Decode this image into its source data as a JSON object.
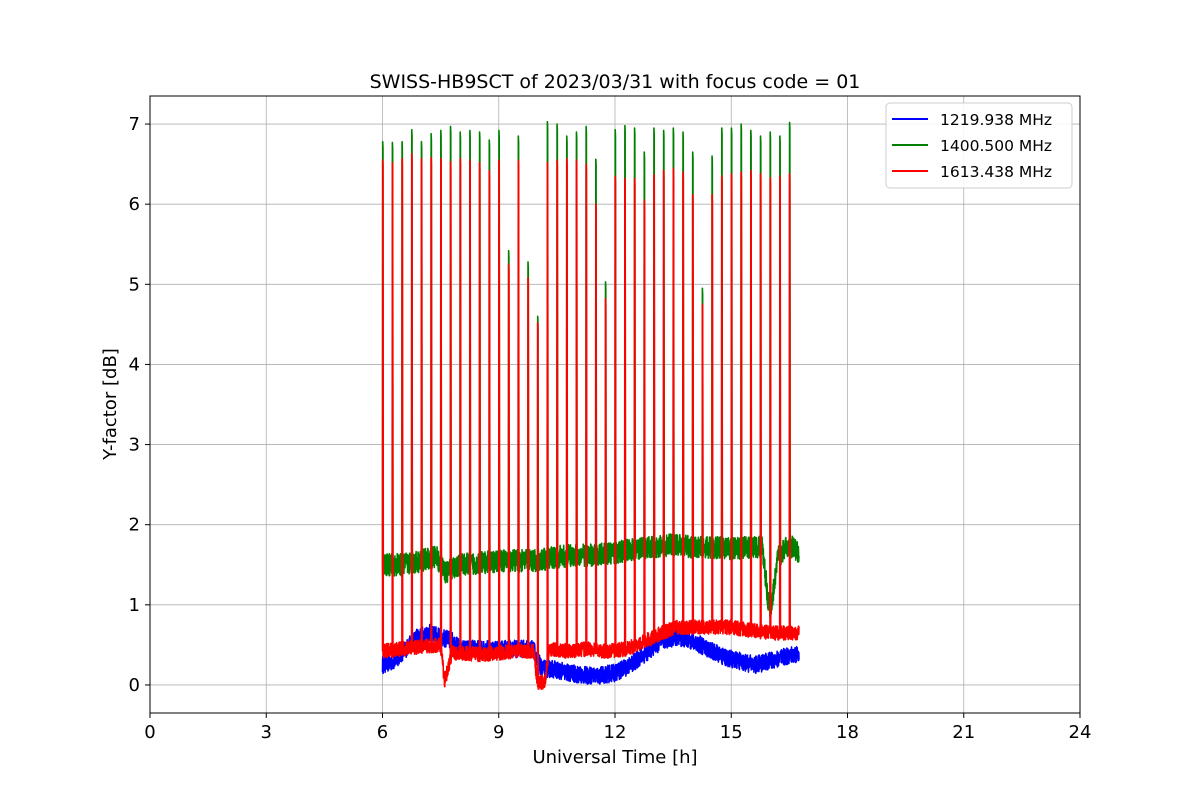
{
  "chart_data": {
    "type": "line",
    "title": "SWISS-HB9SCT of 2023/03/31 with focus code = 01",
    "xlabel": "Universal Time [h]",
    "ylabel": "Y-factor [dB]",
    "xlim": [
      0,
      24
    ],
    "ylim": [
      -0.35,
      7.35
    ],
    "xticks": [
      0,
      3,
      6,
      9,
      12,
      15,
      18,
      21,
      24
    ],
    "yticks": [
      0,
      1,
      2,
      3,
      4,
      5,
      6,
      7
    ],
    "grid": true,
    "legend_position": "top-right",
    "observation_window_h": [
      6.0,
      16.75
    ],
    "series": [
      {
        "name": "1219.938 MHz",
        "color": "#0000ff",
        "baseline": [
          [
            6.0,
            0.25
          ],
          [
            6.3,
            0.3
          ],
          [
            6.6,
            0.45
          ],
          [
            6.9,
            0.6
          ],
          [
            7.2,
            0.65
          ],
          [
            7.5,
            0.6
          ],
          [
            7.8,
            0.55
          ],
          [
            8.0,
            0.45
          ],
          [
            8.5,
            0.45
          ],
          [
            9.0,
            0.45
          ],
          [
            9.5,
            0.45
          ],
          [
            9.9,
            0.45
          ],
          [
            10.1,
            0.2
          ],
          [
            10.4,
            0.2
          ],
          [
            10.8,
            0.15
          ],
          [
            11.2,
            0.12
          ],
          [
            11.6,
            0.12
          ],
          [
            12.0,
            0.15
          ],
          [
            12.4,
            0.25
          ],
          [
            12.8,
            0.4
          ],
          [
            13.2,
            0.55
          ],
          [
            13.6,
            0.6
          ],
          [
            14.0,
            0.55
          ],
          [
            14.4,
            0.45
          ],
          [
            14.8,
            0.35
          ],
          [
            15.2,
            0.3
          ],
          [
            15.6,
            0.25
          ],
          [
            16.0,
            0.3
          ],
          [
            16.4,
            0.35
          ],
          [
            16.75,
            0.4
          ]
        ]
      },
      {
        "name": "1400.500 MHz",
        "color": "#008000",
        "baseline": [
          [
            6.0,
            1.5
          ],
          [
            6.5,
            1.5
          ],
          [
            7.0,
            1.55
          ],
          [
            7.4,
            1.6
          ],
          [
            7.6,
            1.4
          ],
          [
            8.0,
            1.5
          ],
          [
            8.5,
            1.52
          ],
          [
            9.0,
            1.55
          ],
          [
            9.5,
            1.55
          ],
          [
            10.0,
            1.55
          ],
          [
            10.5,
            1.6
          ],
          [
            11.0,
            1.62
          ],
          [
            11.5,
            1.62
          ],
          [
            12.0,
            1.65
          ],
          [
            12.5,
            1.7
          ],
          [
            13.0,
            1.72
          ],
          [
            13.5,
            1.75
          ],
          [
            14.0,
            1.72
          ],
          [
            14.5,
            1.72
          ],
          [
            15.0,
            1.7
          ],
          [
            15.5,
            1.72
          ],
          [
            15.8,
            1.72
          ],
          [
            16.0,
            0.85
          ],
          [
            16.2,
            1.6
          ],
          [
            16.5,
            1.75
          ],
          [
            16.75,
            1.65
          ]
        ],
        "peaks": [
          [
            6.0,
            6.78
          ],
          [
            6.25,
            6.77
          ],
          [
            6.5,
            6.78
          ],
          [
            6.75,
            6.93
          ],
          [
            7.0,
            6.78
          ],
          [
            7.25,
            6.88
          ],
          [
            7.5,
            6.92
          ],
          [
            7.75,
            6.97
          ],
          [
            8.0,
            6.9
          ],
          [
            8.25,
            6.92
          ],
          [
            8.5,
            6.9
          ],
          [
            8.75,
            6.8
          ],
          [
            9.0,
            6.92
          ],
          [
            9.25,
            5.42
          ],
          [
            9.5,
            6.85
          ],
          [
            9.75,
            5.28
          ],
          [
            10.0,
            4.6
          ],
          [
            10.25,
            7.03
          ],
          [
            10.5,
            7.0
          ],
          [
            10.75,
            6.85
          ],
          [
            11.0,
            6.9
          ],
          [
            11.25,
            6.97
          ],
          [
            11.5,
            6.56
          ],
          [
            11.75,
            5.03
          ],
          [
            12.0,
            6.93
          ],
          [
            12.25,
            6.98
          ],
          [
            12.5,
            6.95
          ],
          [
            12.75,
            6.65
          ],
          [
            13.0,
            6.95
          ],
          [
            13.25,
            6.92
          ],
          [
            13.5,
            6.95
          ],
          [
            13.75,
            6.9
          ],
          [
            14.0,
            6.65
          ],
          [
            14.25,
            4.95
          ],
          [
            14.5,
            6.6
          ],
          [
            14.75,
            6.95
          ],
          [
            15.0,
            6.95
          ],
          [
            15.25,
            7.0
          ],
          [
            15.5,
            6.92
          ],
          [
            15.75,
            6.85
          ],
          [
            16.0,
            6.9
          ],
          [
            16.25,
            6.85
          ],
          [
            16.5,
            7.02
          ]
        ]
      },
      {
        "name": "1613.438 MHz",
        "color": "#ff0000",
        "baseline": [
          [
            6.0,
            0.42
          ],
          [
            6.5,
            0.45
          ],
          [
            7.0,
            0.48
          ],
          [
            7.5,
            0.5
          ],
          [
            7.6,
            0.05
          ],
          [
            7.8,
            0.4
          ],
          [
            8.0,
            0.4
          ],
          [
            8.5,
            0.38
          ],
          [
            9.0,
            0.4
          ],
          [
            9.5,
            0.42
          ],
          [
            9.9,
            0.42
          ],
          [
            10.0,
            0.02
          ],
          [
            10.2,
            0.05
          ],
          [
            10.3,
            0.45
          ],
          [
            10.8,
            0.42
          ],
          [
            11.3,
            0.45
          ],
          [
            11.8,
            0.42
          ],
          [
            12.3,
            0.45
          ],
          [
            12.8,
            0.55
          ],
          [
            13.2,
            0.65
          ],
          [
            13.6,
            0.72
          ],
          [
            14.0,
            0.72
          ],
          [
            14.5,
            0.72
          ],
          [
            15.0,
            0.72
          ],
          [
            15.5,
            0.68
          ],
          [
            16.0,
            0.65
          ],
          [
            16.5,
            0.65
          ],
          [
            16.75,
            0.65
          ]
        ],
        "peaks": [
          [
            6.0,
            6.55
          ],
          [
            6.25,
            6.52
          ],
          [
            6.5,
            6.57
          ],
          [
            6.75,
            6.63
          ],
          [
            7.0,
            6.57
          ],
          [
            7.25,
            6.58
          ],
          [
            7.5,
            6.57
          ],
          [
            7.75,
            6.53
          ],
          [
            8.0,
            6.57
          ],
          [
            8.25,
            6.55
          ],
          [
            8.5,
            6.52
          ],
          [
            8.75,
            6.42
          ],
          [
            9.0,
            6.55
          ],
          [
            9.25,
            5.25
          ],
          [
            9.5,
            6.55
          ],
          [
            9.75,
            5.08
          ],
          [
            10.0,
            4.52
          ],
          [
            10.25,
            6.52
          ],
          [
            10.5,
            6.55
          ],
          [
            10.75,
            6.57
          ],
          [
            11.0,
            6.55
          ],
          [
            11.25,
            6.5
          ],
          [
            11.5,
            6.0
          ],
          [
            11.75,
            4.82
          ],
          [
            12.0,
            6.35
          ],
          [
            12.25,
            6.32
          ],
          [
            12.5,
            6.32
          ],
          [
            12.75,
            6.05
          ],
          [
            13.0,
            6.37
          ],
          [
            13.25,
            6.42
          ],
          [
            13.5,
            6.45
          ],
          [
            13.75,
            6.4
          ],
          [
            14.0,
            6.12
          ],
          [
            14.25,
            4.75
          ],
          [
            14.5,
            6.12
          ],
          [
            14.75,
            6.35
          ],
          [
            15.0,
            6.38
          ],
          [
            15.25,
            6.4
          ],
          [
            15.5,
            6.42
          ],
          [
            15.75,
            6.38
          ],
          [
            16.0,
            6.33
          ],
          [
            16.25,
            6.35
          ],
          [
            16.5,
            6.38
          ]
        ]
      }
    ]
  }
}
